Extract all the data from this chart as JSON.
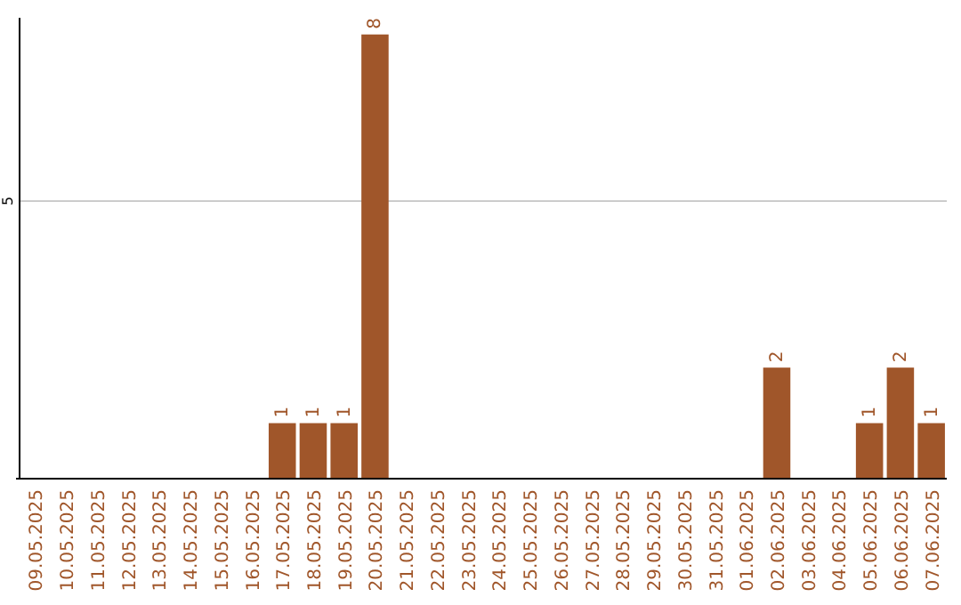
{
  "chart_data": {
    "type": "bar",
    "categories": [
      "09.05.2025",
      "10.05.2025",
      "11.05.2025",
      "12.05.2025",
      "13.05.2025",
      "14.05.2025",
      "15.05.2025",
      "16.05.2025",
      "17.05.2025",
      "18.05.2025",
      "19.05.2025",
      "20.05.2025",
      "21.05.2025",
      "22.05.2025",
      "23.05.2025",
      "24.05.2025",
      "25.05.2025",
      "26.05.2025",
      "27.05.2025",
      "28.05.2025",
      "29.05.2025",
      "30.05.2025",
      "31.05.2025",
      "01.06.2025",
      "02.06.2025",
      "03.06.2025",
      "04.06.2025",
      "05.06.2025",
      "06.06.2025",
      "07.06.2025"
    ],
    "values": [
      0,
      0,
      0,
      0,
      0,
      0,
      0,
      0,
      1,
      1,
      1,
      8,
      0,
      0,
      0,
      0,
      0,
      0,
      0,
      0,
      0,
      0,
      0,
      0,
      2,
      0,
      0,
      1,
      2,
      1
    ],
    "value_labels": [
      null,
      null,
      null,
      null,
      null,
      null,
      null,
      null,
      "1",
      "1",
      "1",
      "8",
      null,
      null,
      null,
      null,
      null,
      null,
      null,
      null,
      null,
      null,
      null,
      null,
      "2",
      null,
      null,
      "1",
      "2",
      "1"
    ],
    "color": "#a0562a",
    "ylim": [
      0,
      8.3
    ],
    "yticks": [
      5
    ],
    "grid": "y"
  }
}
